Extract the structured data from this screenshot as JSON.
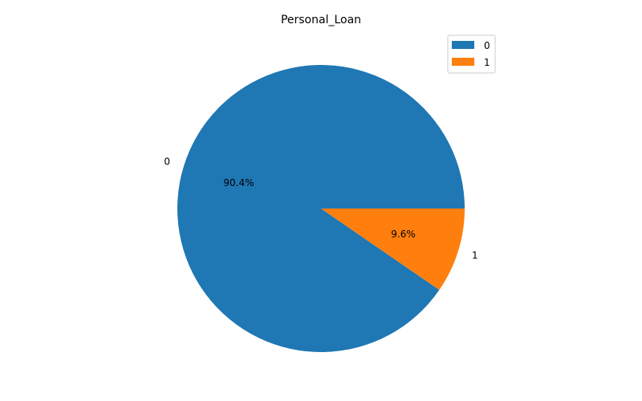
{
  "chart_data": {
    "type": "pie",
    "title": "Personal_Loan",
    "slices": [
      {
        "label": "0",
        "value": 90.4,
        "pct_label": "90.4%",
        "color": "#1f77b4"
      },
      {
        "label": "1",
        "value": 9.6,
        "pct_label": "9.6%",
        "color": "#ff7f0e"
      }
    ],
    "start_angle_deg": 0,
    "direction": "counterclockwise",
    "legend": {
      "position": "top-right",
      "entries": [
        "0",
        "1"
      ]
    }
  }
}
